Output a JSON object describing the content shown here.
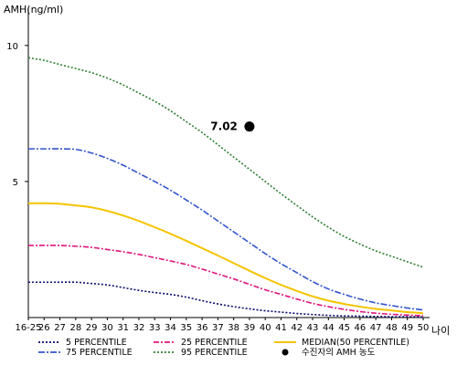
{
  "chart_data": {
    "type": "line",
    "ylabel": "AMH(ng/ml)",
    "xlabel": "나이",
    "y_ticks": [
      "5",
      "10"
    ],
    "ylim": [
      0,
      11
    ],
    "categories": [
      "16-25",
      "26",
      "27",
      "28",
      "29",
      "30",
      "31",
      "32",
      "33",
      "34",
      "35",
      "36",
      "37",
      "38",
      "39",
      "40",
      "41",
      "42",
      "43",
      "44",
      "45",
      "46",
      "47",
      "48",
      "49",
      "50"
    ],
    "series": [
      {
        "name": "5 PERCENTILE",
        "color": "#0a0a6e",
        "dash": "2 2",
        "values": [
          1.3,
          1.3,
          1.3,
          1.3,
          1.25,
          1.2,
          1.1,
          1.0,
          0.92,
          0.85,
          0.75,
          0.62,
          0.5,
          0.4,
          0.32,
          0.25,
          0.2,
          0.15,
          0.11,
          0.08,
          0.06,
          0.05,
          0.04,
          0.03,
          0.03,
          0.02
        ]
      },
      {
        "name": "25 PERCENTILE",
        "color": "#e0147a",
        "dash": "6 2 2 2",
        "values": [
          2.65,
          2.65,
          2.65,
          2.62,
          2.58,
          2.5,
          2.42,
          2.32,
          2.2,
          2.08,
          1.95,
          1.78,
          1.6,
          1.42,
          1.22,
          1.02,
          0.85,
          0.68,
          0.52,
          0.4,
          0.3,
          0.22,
          0.16,
          0.12,
          0.09,
          0.07
        ]
      },
      {
        "name": "75 PERCENTILE",
        "color": "#3355cc",
        "dash": "7 2 2 2",
        "values": [
          6.2,
          6.2,
          6.2,
          6.18,
          6.05,
          5.85,
          5.6,
          5.3,
          5.0,
          4.68,
          4.32,
          3.95,
          3.55,
          3.15,
          2.75,
          2.35,
          1.98,
          1.65,
          1.32,
          1.05,
          0.85,
          0.68,
          0.54,
          0.44,
          0.35,
          0.28
        ]
      },
      {
        "name": "95 PERCENTILE",
        "color": "#2e7d32",
        "dash": "2 2",
        "values": [
          9.55,
          9.45,
          9.3,
          9.15,
          9.0,
          8.8,
          8.55,
          8.25,
          7.95,
          7.6,
          7.2,
          6.8,
          6.35,
          5.9,
          5.45,
          5.0,
          4.55,
          4.12,
          3.7,
          3.32,
          2.98,
          2.7,
          2.45,
          2.25,
          2.05,
          1.85
        ]
      },
      {
        "name": "MEDIAN(50 PERCENTILE)",
        "color": "#f5c400",
        "dash": "",
        "values": [
          4.2,
          4.2,
          4.18,
          4.12,
          4.05,
          3.92,
          3.75,
          3.55,
          3.32,
          3.08,
          2.82,
          2.55,
          2.28,
          2.0,
          1.72,
          1.45,
          1.2,
          0.98,
          0.78,
          0.62,
          0.5,
          0.4,
          0.32,
          0.26,
          0.2,
          0.16
        ]
      }
    ],
    "point": {
      "name": "수진자의 AMH 농도",
      "x": "39",
      "y": 7.02,
      "label": "7.02",
      "color": "#000000"
    },
    "legend_position": "bottom",
    "grid": false
  }
}
